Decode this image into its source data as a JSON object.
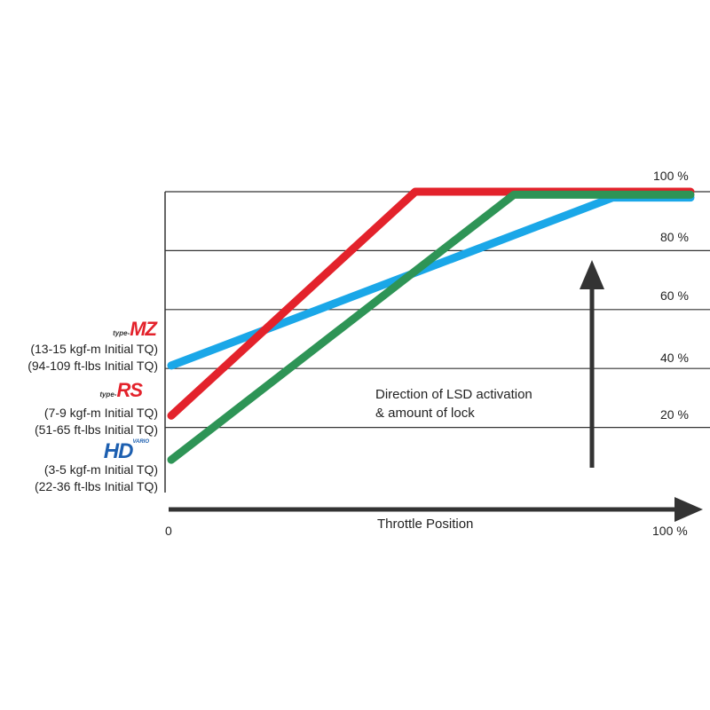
{
  "chart_data": {
    "type": "line",
    "title": "",
    "xlabel": "Throttle Position",
    "ylabel": "",
    "xlim": [
      0,
      100
    ],
    "ylim": [
      0,
      100
    ],
    "x_tick_labels": [
      "0",
      "100 %"
    ],
    "y_tick_labels": [
      "20 %",
      "40 %",
      "60 %",
      "80 %",
      "100 %"
    ],
    "y_ticks": [
      20,
      40,
      60,
      80,
      100
    ],
    "grid": "horizontal",
    "annotation": [
      "Direction of LSD activation",
      "& amount of lock"
    ],
    "series": [
      {
        "id": "type-MZ",
        "color": "#1aa7e8",
        "x": [
          0,
          85,
          100
        ],
        "y": [
          41,
          98,
          98
        ]
      },
      {
        "id": "type-RS",
        "color": "#e3222b",
        "x": [
          0,
          47,
          100
        ],
        "y": [
          24,
          100,
          100
        ]
      },
      {
        "id": "HD",
        "color": "#2e9456",
        "x": [
          0,
          66,
          100
        ],
        "y": [
          9,
          99,
          99
        ]
      }
    ]
  },
  "legend": [
    {
      "logo_prefix": "type-",
      "logo": "MZ",
      "color": "#e3222b",
      "line1": "(13-15 kgf-m Initial TQ)",
      "line2": "(94-109 ft-lbs Initial TQ)"
    },
    {
      "logo_prefix": "type-",
      "logo": "RS",
      "color": "#e3222b",
      "line1": "(7-9 kgf-m Initial TQ)",
      "line2": "(51-65 ft-lbs Initial TQ)"
    },
    {
      "logo_prefix": "",
      "logo": "HD",
      "logo_small": "VARIO",
      "color": "#1d5fb0",
      "line1": "(3-5 kgf-m Initial TQ)",
      "line2": "(22-36 ft-lbs Initial TQ)"
    }
  ]
}
